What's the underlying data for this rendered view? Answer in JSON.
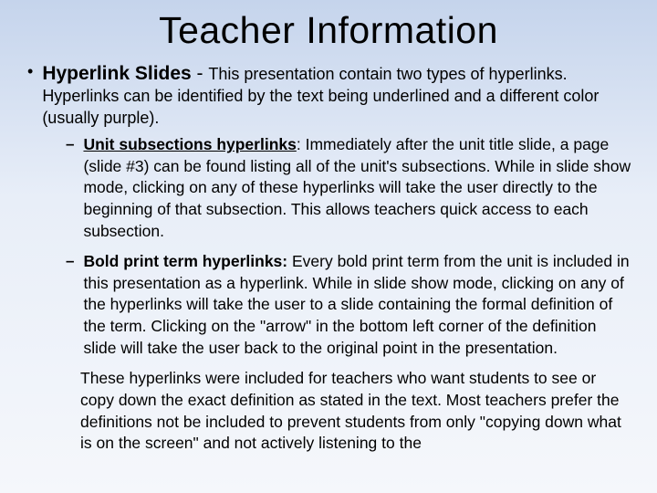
{
  "slide": {
    "title": "Teacher Information",
    "background_gradient": [
      "#c5d4ec",
      "#e8eef8",
      "#f5f7fb"
    ],
    "text_color": "#000000",
    "title_fontsize": 41,
    "body_fontsize": 18,
    "sub_fontsize": 17.5,
    "main": {
      "lead": "Hyperlink Slides",
      "dash": " - ",
      "text": "This presentation contain two types of hyperlinks.  Hyperlinks can be identified by the text being underlined and a different color (usually purple)."
    },
    "subs": [
      {
        "lead": "Unit subsections hyperlinks",
        "text": ":  Immediately after the unit title slide, a page (slide #3) can be found listing all of the unit's subsections.  While in slide show mode, clicking on any of these hyperlinks will take the user directly to the beginning of that subsection.  This allows teachers quick access to each subsection."
      },
      {
        "lead": "Bold print term hyperlinks:",
        "text": "  Every bold print term from the unit is included in this presentation as a hyperlink.  While in slide show mode, clicking on any of the hyperlinks will take the user to a slide containing the formal definition of the term.  Clicking on the \"arrow\" in the bottom left corner of the definition slide will take the user back to the original point in the presentation."
      }
    ],
    "trailing": "These hyperlinks were included for teachers who want students to see or copy down the exact definition as stated in the text.  Most teachers prefer the definitions not be included to prevent students from only \"copying down what is on the screen\" and not actively listening to the"
  }
}
